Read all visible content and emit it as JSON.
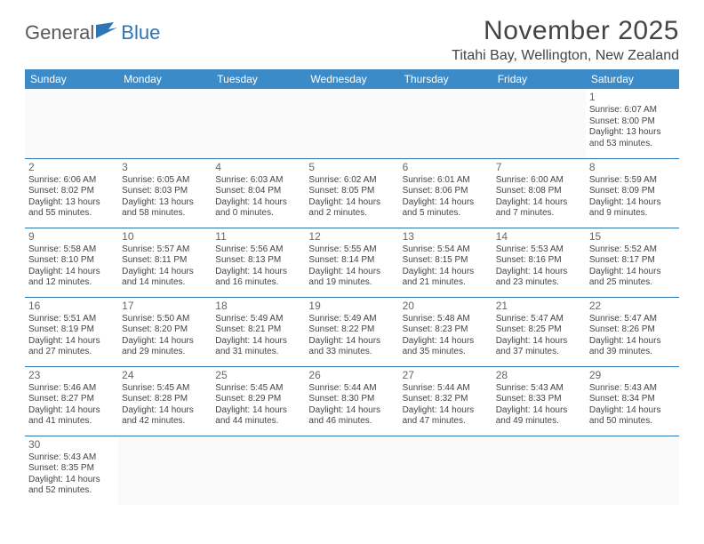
{
  "brand": {
    "general": "General",
    "blue": "Blue"
  },
  "header": {
    "month_title": "November 2025",
    "location": "Titahi Bay, Wellington, New Zealand"
  },
  "colors": {
    "header_bg": "#3b8bc9",
    "header_text": "#ffffff",
    "cell_border": "#2e75b6",
    "body_text": "#444444",
    "logo_gray": "#5a5a5a",
    "logo_blue": "#2e75b6"
  },
  "day_headers": [
    "Sunday",
    "Monday",
    "Tuesday",
    "Wednesday",
    "Thursday",
    "Friday",
    "Saturday"
  ],
  "weeks": [
    [
      null,
      null,
      null,
      null,
      null,
      null,
      {
        "n": "1",
        "sr": "Sunrise: 6:07 AM",
        "ss": "Sunset: 8:00 PM",
        "dl": "Daylight: 13 hours and 53 minutes."
      }
    ],
    [
      {
        "n": "2",
        "sr": "Sunrise: 6:06 AM",
        "ss": "Sunset: 8:02 PM",
        "dl": "Daylight: 13 hours and 55 minutes."
      },
      {
        "n": "3",
        "sr": "Sunrise: 6:05 AM",
        "ss": "Sunset: 8:03 PM",
        "dl": "Daylight: 13 hours and 58 minutes."
      },
      {
        "n": "4",
        "sr": "Sunrise: 6:03 AM",
        "ss": "Sunset: 8:04 PM",
        "dl": "Daylight: 14 hours and 0 minutes."
      },
      {
        "n": "5",
        "sr": "Sunrise: 6:02 AM",
        "ss": "Sunset: 8:05 PM",
        "dl": "Daylight: 14 hours and 2 minutes."
      },
      {
        "n": "6",
        "sr": "Sunrise: 6:01 AM",
        "ss": "Sunset: 8:06 PM",
        "dl": "Daylight: 14 hours and 5 minutes."
      },
      {
        "n": "7",
        "sr": "Sunrise: 6:00 AM",
        "ss": "Sunset: 8:08 PM",
        "dl": "Daylight: 14 hours and 7 minutes."
      },
      {
        "n": "8",
        "sr": "Sunrise: 5:59 AM",
        "ss": "Sunset: 8:09 PM",
        "dl": "Daylight: 14 hours and 9 minutes."
      }
    ],
    [
      {
        "n": "9",
        "sr": "Sunrise: 5:58 AM",
        "ss": "Sunset: 8:10 PM",
        "dl": "Daylight: 14 hours and 12 minutes."
      },
      {
        "n": "10",
        "sr": "Sunrise: 5:57 AM",
        "ss": "Sunset: 8:11 PM",
        "dl": "Daylight: 14 hours and 14 minutes."
      },
      {
        "n": "11",
        "sr": "Sunrise: 5:56 AM",
        "ss": "Sunset: 8:13 PM",
        "dl": "Daylight: 14 hours and 16 minutes."
      },
      {
        "n": "12",
        "sr": "Sunrise: 5:55 AM",
        "ss": "Sunset: 8:14 PM",
        "dl": "Daylight: 14 hours and 19 minutes."
      },
      {
        "n": "13",
        "sr": "Sunrise: 5:54 AM",
        "ss": "Sunset: 8:15 PM",
        "dl": "Daylight: 14 hours and 21 minutes."
      },
      {
        "n": "14",
        "sr": "Sunrise: 5:53 AM",
        "ss": "Sunset: 8:16 PM",
        "dl": "Daylight: 14 hours and 23 minutes."
      },
      {
        "n": "15",
        "sr": "Sunrise: 5:52 AM",
        "ss": "Sunset: 8:17 PM",
        "dl": "Daylight: 14 hours and 25 minutes."
      }
    ],
    [
      {
        "n": "16",
        "sr": "Sunrise: 5:51 AM",
        "ss": "Sunset: 8:19 PM",
        "dl": "Daylight: 14 hours and 27 minutes."
      },
      {
        "n": "17",
        "sr": "Sunrise: 5:50 AM",
        "ss": "Sunset: 8:20 PM",
        "dl": "Daylight: 14 hours and 29 minutes."
      },
      {
        "n": "18",
        "sr": "Sunrise: 5:49 AM",
        "ss": "Sunset: 8:21 PM",
        "dl": "Daylight: 14 hours and 31 minutes."
      },
      {
        "n": "19",
        "sr": "Sunrise: 5:49 AM",
        "ss": "Sunset: 8:22 PM",
        "dl": "Daylight: 14 hours and 33 minutes."
      },
      {
        "n": "20",
        "sr": "Sunrise: 5:48 AM",
        "ss": "Sunset: 8:23 PM",
        "dl": "Daylight: 14 hours and 35 minutes."
      },
      {
        "n": "21",
        "sr": "Sunrise: 5:47 AM",
        "ss": "Sunset: 8:25 PM",
        "dl": "Daylight: 14 hours and 37 minutes."
      },
      {
        "n": "22",
        "sr": "Sunrise: 5:47 AM",
        "ss": "Sunset: 8:26 PM",
        "dl": "Daylight: 14 hours and 39 minutes."
      }
    ],
    [
      {
        "n": "23",
        "sr": "Sunrise: 5:46 AM",
        "ss": "Sunset: 8:27 PM",
        "dl": "Daylight: 14 hours and 41 minutes."
      },
      {
        "n": "24",
        "sr": "Sunrise: 5:45 AM",
        "ss": "Sunset: 8:28 PM",
        "dl": "Daylight: 14 hours and 42 minutes."
      },
      {
        "n": "25",
        "sr": "Sunrise: 5:45 AM",
        "ss": "Sunset: 8:29 PM",
        "dl": "Daylight: 14 hours and 44 minutes."
      },
      {
        "n": "26",
        "sr": "Sunrise: 5:44 AM",
        "ss": "Sunset: 8:30 PM",
        "dl": "Daylight: 14 hours and 46 minutes."
      },
      {
        "n": "27",
        "sr": "Sunrise: 5:44 AM",
        "ss": "Sunset: 8:32 PM",
        "dl": "Daylight: 14 hours and 47 minutes."
      },
      {
        "n": "28",
        "sr": "Sunrise: 5:43 AM",
        "ss": "Sunset: 8:33 PM",
        "dl": "Daylight: 14 hours and 49 minutes."
      },
      {
        "n": "29",
        "sr": "Sunrise: 5:43 AM",
        "ss": "Sunset: 8:34 PM",
        "dl": "Daylight: 14 hours and 50 minutes."
      }
    ],
    [
      {
        "n": "30",
        "sr": "Sunrise: 5:43 AM",
        "ss": "Sunset: 8:35 PM",
        "dl": "Daylight: 14 hours and 52 minutes."
      },
      null,
      null,
      null,
      null,
      null,
      null
    ]
  ]
}
